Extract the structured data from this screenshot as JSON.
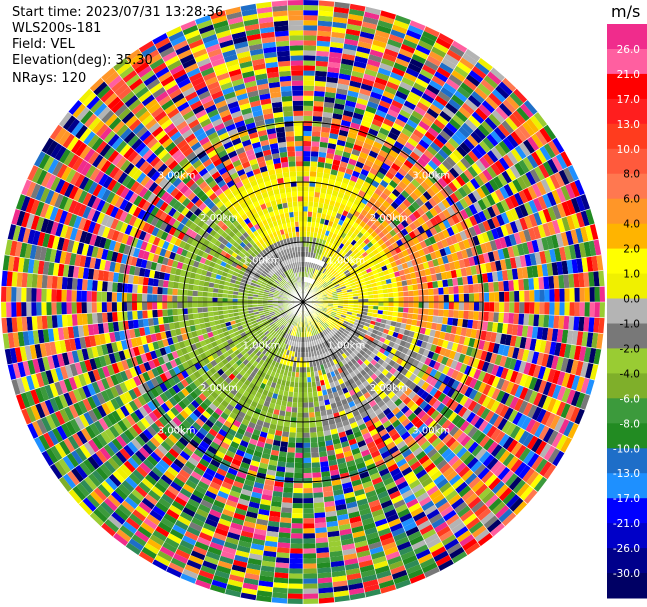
{
  "header": {
    "start_time": "Start time: 2023/07/31 13:28:36",
    "instrument": "WLS200s-181",
    "field": "Field: VEL",
    "elevation": "Elevation(deg): 35.30",
    "nrays": "NRays: 120"
  },
  "chart_data": {
    "type": "heatmap",
    "subtype": "polar-ppi",
    "field": "VEL",
    "elevation_deg": 35.3,
    "nrays": 120,
    "range_rings_km": [
      1.0,
      2.0,
      3.0
    ],
    "ring_labels": [
      "1.00km",
      "2.00km",
      "3.00km"
    ],
    "colorbar": {
      "unit": "m/s",
      "tick_labels": [
        "26.0",
        "21.0",
        "17.0",
        "13.0",
        "10.0",
        "8.0",
        "6.0",
        "4.0",
        "2.0",
        "1.0",
        "0.0",
        "-1.0",
        "-2.0",
        "-4.0",
        "-6.0",
        "-8.0",
        "-10.0",
        "-13.0",
        "-17.0",
        "-21.0",
        "-26.0",
        "-30.0"
      ],
      "colors": [
        "#f02c8c",
        "#ff5fa0",
        "#ff0000",
        "#ff1e1e",
        "#ff3c1e",
        "#ff5a3c",
        "#ff7850",
        "#ff9628",
        "#ffb400",
        "#ffff00",
        "#f0f000",
        "#b4b4b4",
        "#787878",
        "#99cc33",
        "#7faf2a",
        "#3c9a3c",
        "#228b22",
        "#1e6ec8",
        "#1e90ff",
        "#0000ff",
        "#0000c8",
        "#00008b",
        "#000064"
      ]
    },
    "description_zones": [
      {
        "region": "inner",
        "max_km": 0.6,
        "dominant": "mixed yellow/green with gray"
      },
      {
        "region": "middle",
        "max_km": 2.2,
        "dominant": "yellow north-east, green south-west, gray ring"
      },
      {
        "region": "outer",
        "max_km": 3.5,
        "dominant": "noisy multi-color"
      }
    ]
  }
}
